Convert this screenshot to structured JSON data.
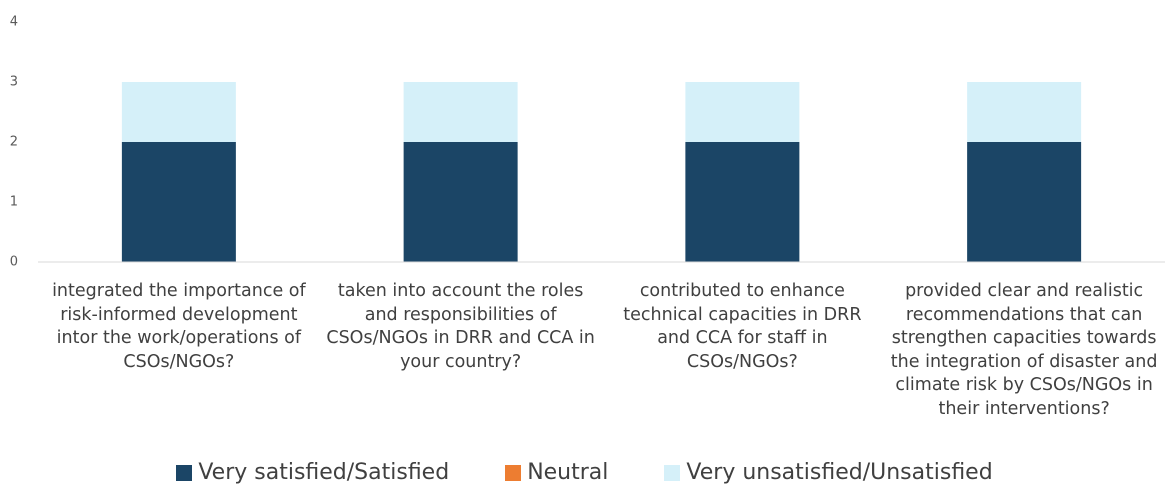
{
  "chart_data": {
    "type": "stacked_bar",
    "categories": [
      "integrated the importance of risk-informed development intor the work/operations of CSOs/NGOs?",
      "taken into account the roles and responsibilities of CSOs/NGOs in DRR and CCA in your country?",
      "contributed to enhance technical capacities in DRR and CCA for staff in CSOs/NGOs?",
      "provided clear and realistic recommendations that can strengthen capacities towards the integration of disaster and climate risk by CSOs/NGOs in their interventions?"
    ],
    "series": [
      {
        "name": "Very satisfied/Satisfied",
        "color": "#1b4566",
        "values": [
          2,
          2,
          2,
          2
        ]
      },
      {
        "name": "Neutral",
        "color": "#ed7d31",
        "values": [
          0,
          0,
          0,
          0
        ]
      },
      {
        "name": "Very unsatisfied/Unsatisfied",
        "color": "#d5f0f9",
        "values": [
          1,
          1,
          1,
          1
        ]
      }
    ],
    "ylim": [
      0,
      4
    ],
    "yticks": [
      0,
      1,
      2,
      3,
      4
    ],
    "grid": false,
    "legend": "bottom"
  }
}
